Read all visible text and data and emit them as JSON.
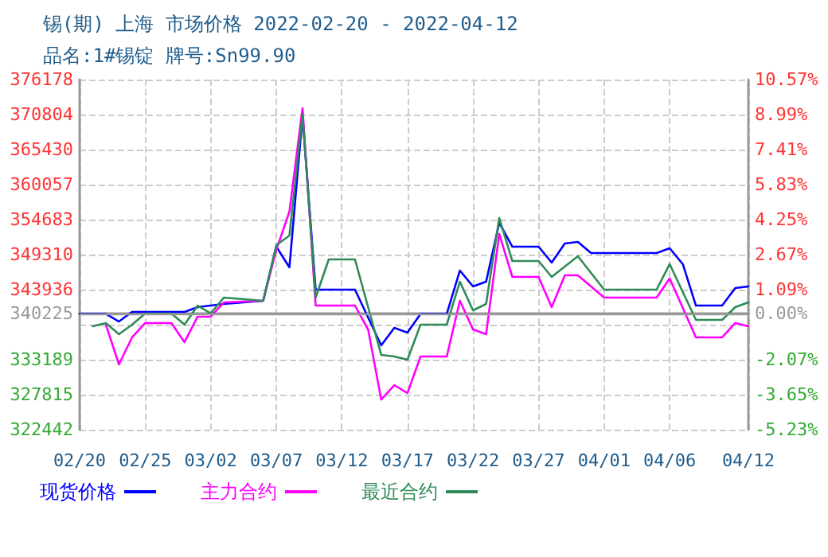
{
  "chart_data": {
    "type": "line",
    "title": "锡(期) 上海 市场价格 2022-02-20 - 2022-04-12",
    "subtitle": "品名:1#锡锭 牌号:Sn99.90",
    "xlim": [
      "2022-02-20",
      "2022-04-12"
    ],
    "xticks": [
      {
        "value": "2022-02-20",
        "label": "02/20"
      },
      {
        "value": "2022-02-25",
        "label": "02/25"
      },
      {
        "value": "2022-03-02",
        "label": "03/02"
      },
      {
        "value": "2022-03-07",
        "label": "03/07"
      },
      {
        "value": "2022-03-12",
        "label": "03/12"
      },
      {
        "value": "2022-03-17",
        "label": "03/17"
      },
      {
        "value": "2022-03-22",
        "label": "03/22"
      },
      {
        "value": "2022-03-27",
        "label": "03/27"
      },
      {
        "value": "2022-04-01",
        "label": "04/01"
      },
      {
        "value": "2022-04-06",
        "label": "04/06"
      },
      {
        "value": "2022-04-12",
        "label": "04/12"
      }
    ],
    "ylim": [
      322442,
      376178
    ],
    "yticks": [
      322442,
      327815,
      333189,
      {
        "value": 338562,
        "label": null
      },
      340225,
      343936,
      349310,
      354683,
      360057,
      365430,
      370804,
      376178
    ],
    "y2lim": [
      -5.23,
      10.57
    ],
    "y2ticks": [
      {
        "value": -5.23,
        "label": "-5.23%"
      },
      {
        "value": -3.65,
        "label": "-3.65%"
      },
      {
        "value": -2.07,
        "label": "-2.07%"
      },
      {
        "value": 0,
        "label": "0.00%"
      },
      {
        "value": 1.09,
        "label": "1.09%"
      },
      {
        "value": 2.67,
        "label": "2.67%"
      },
      {
        "value": 4.25,
        "label": "4.25%"
      },
      {
        "value": 5.83,
        "label": "5.83%"
      },
      {
        "value": 7.41,
        "label": "7.41%"
      },
      {
        "value": 8.99,
        "label": "8.99%"
      },
      {
        "value": 10.57,
        "label": "10.57%"
      }
    ],
    "ref_lines": [
      {
        "axis": "y",
        "value": 340225,
        "color": "#999999"
      }
    ],
    "grid": true,
    "legend": "bottom",
    "marker": "none",
    "line_style": "solid",
    "series": [
      {
        "name": "现货价格",
        "color": "#0000ff",
        "x": [
          "2022-02-20",
          "2022-02-22",
          "2022-02-23",
          "2022-02-24",
          "2022-02-28",
          "2022-03-01",
          "2022-03-03",
          "2022-03-06",
          "2022-03-07",
          "2022-03-08",
          "2022-03-09",
          "2022-03-10",
          "2022-03-13",
          "2022-03-15",
          "2022-03-16",
          "2022-03-17",
          "2022-03-18",
          "2022-03-20",
          "2022-03-21",
          "2022-03-22",
          "2022-03-23",
          "2022-03-24",
          "2022-03-25",
          "2022-03-27",
          "2022-03-28",
          "2022-03-29",
          "2022-03-30",
          "2022-03-31",
          "2022-04-05",
          "2022-04-06",
          "2022-04-07",
          "2022-04-08",
          "2022-04-10",
          "2022-04-11",
          "2022-04-12"
        ],
        "values": [
          340225,
          340225,
          339050,
          340520,
          340520,
          341250,
          341740,
          342230,
          350530,
          347360,
          370560,
          343940,
          343940,
          335390,
          338070,
          337340,
          340225,
          340225,
          346870,
          344430,
          345160,
          354200,
          350530,
          350530,
          348090,
          351020,
          351270,
          349560,
          349560,
          350290,
          347850,
          341490,
          341490,
          344180,
          344430
        ]
      },
      {
        "name": "主力合约",
        "color": "#ff00ff",
        "x": [
          "2022-02-22",
          "2022-02-23",
          "2022-02-24",
          "2022-02-25",
          "2022-02-27",
          "2022-02-28",
          "2022-03-01",
          "2022-03-02",
          "2022-03-03",
          "2022-03-06",
          "2022-03-07",
          "2022-03-08",
          "2022-03-09",
          "2022-03-10",
          "2022-03-13",
          "2022-03-14",
          "2022-03-15",
          "2022-03-16",
          "2022-03-17",
          "2022-03-18",
          "2022-03-20",
          "2022-03-21",
          "2022-03-22",
          "2022-03-23",
          "2022-03-24",
          "2022-03-25",
          "2022-03-27",
          "2022-03-28",
          "2022-03-29",
          "2022-03-30",
          "2022-04-01",
          "2022-04-05",
          "2022-04-06",
          "2022-04-08",
          "2022-04-10",
          "2022-04-11",
          "2022-04-12"
        ],
        "values": [
          338570,
          332460,
          336610,
          338810,
          338810,
          335880,
          339790,
          339790,
          341980,
          342230,
          350050,
          355910,
          371780,
          341490,
          341490,
          337830,
          327080,
          329280,
          328060,
          333680,
          333680,
          342230,
          337830,
          337100,
          352490,
          345890,
          345890,
          341250,
          346140,
          346140,
          342720,
          342720,
          345650,
          336610,
          336610,
          338810,
          338320
        ]
      },
      {
        "name": "最近合约",
        "color": "#2e8b57",
        "x": [
          "2022-02-21",
          "2022-02-22",
          "2022-02-23",
          "2022-02-24",
          "2022-02-25",
          "2022-02-27",
          "2022-02-28",
          "2022-03-01",
          "2022-03-02",
          "2022-03-03",
          "2022-03-06",
          "2022-03-07",
          "2022-03-08",
          "2022-03-09",
          "2022-03-10",
          "2022-03-11",
          "2022-03-13",
          "2022-03-14",
          "2022-03-15",
          "2022-03-16",
          "2022-03-17",
          "2022-03-18",
          "2022-03-20",
          "2022-03-21",
          "2022-03-22",
          "2022-03-23",
          "2022-03-24",
          "2022-03-25",
          "2022-03-27",
          "2022-03-28",
          "2022-03-30",
          "2022-04-01",
          "2022-04-05",
          "2022-04-06",
          "2022-04-08",
          "2022-04-10",
          "2022-04-11",
          "2022-04-12"
        ],
        "values": [
          338320,
          338810,
          337100,
          338570,
          340280,
          340280,
          338570,
          341490,
          340280,
          342720,
          342230,
          350780,
          352240,
          370800,
          342720,
          348580,
          348580,
          341250,
          333930,
          333680,
          333190,
          338570,
          338570,
          345160,
          340760,
          341740,
          354930,
          348330,
          348330,
          345890,
          349070,
          343940,
          343940,
          347850,
          339300,
          339300,
          341250,
          341980
        ]
      }
    ]
  }
}
